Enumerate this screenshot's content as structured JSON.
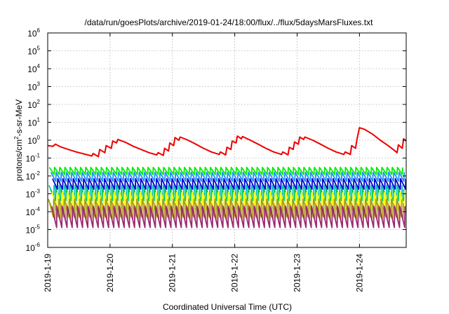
{
  "chart_data": {
    "type": "line",
    "title": "/data/run/goesPlots/archive/2019-01-24/18:00/flux/../flux/5daysMarsFluxes.txt",
    "xlabel": "Coordinated Universal Time (UTC)",
    "ylabel_parts": [
      "protons/cm",
      "2",
      "-s-sr-MeV"
    ],
    "y_scale": "log",
    "ylim": [
      1e-06,
      1000000.0
    ],
    "y_ticks": [
      {
        "base": "10",
        "exp": "-6",
        "value": 1e-06
      },
      {
        "base": "10",
        "exp": "-5",
        "value": 1e-05
      },
      {
        "base": "10",
        "exp": "-4",
        "value": 0.0001
      },
      {
        "base": "10",
        "exp": "-3",
        "value": 0.001
      },
      {
        "base": "10",
        "exp": "-2",
        "value": 0.01
      },
      {
        "base": "10",
        "exp": "-1",
        "value": 0.1
      },
      {
        "base": "10",
        "exp": "0",
        "value": 1
      },
      {
        "base": "10",
        "exp": "1",
        "value": 10
      },
      {
        "base": "10",
        "exp": "2",
        "value": 100
      },
      {
        "base": "10",
        "exp": "3",
        "value": 1000
      },
      {
        "base": "10",
        "exp": "4",
        "value": 10000
      },
      {
        "base": "10",
        "exp": "5",
        "value": 100000
      },
      {
        "base": "10",
        "exp": "6",
        "value": 1000000
      }
    ],
    "x_range": [
      "2019-01-19T00:00",
      "2019-01-24T18:00"
    ],
    "x_ticks": [
      {
        "label": "2019-1-19",
        "date": "2019-01-19T00:00"
      },
      {
        "label": "2019-1-20",
        "date": "2019-01-20T00:00"
      },
      {
        "label": "2019-1-21",
        "date": "2019-01-21T00:00"
      },
      {
        "label": "2019-1-22",
        "date": "2019-01-22T00:00"
      },
      {
        "label": "2019-1-23",
        "date": "2019-01-23T00:00"
      },
      {
        "label": "2019-1-24",
        "date": "2019-01-24T00:00"
      }
    ],
    "grid": true,
    "series": [
      {
        "color": "#ee0000",
        "points": [
          [
            "2019-01-19T00:00",
            0.5
          ],
          [
            "2019-01-19T02:00",
            0.45
          ],
          [
            "2019-01-19T03:00",
            0.6
          ],
          [
            "2019-01-19T05:00",
            0.42
          ],
          [
            "2019-01-19T08:00",
            0.3
          ],
          [
            "2019-01-19T11:00",
            0.22
          ],
          [
            "2019-01-19T14:00",
            0.17
          ],
          [
            "2019-01-19T17:00",
            0.13
          ],
          [
            "2019-01-19T17:30",
            0.18
          ],
          [
            "2019-01-19T19:30",
            0.12
          ],
          [
            "2019-01-19T20:00",
            0.3
          ],
          [
            "2019-01-19T22:00",
            0.2
          ],
          [
            "2019-01-19T22:30",
            0.5
          ],
          [
            "2019-01-20T00:30",
            0.35
          ],
          [
            "2019-01-20T01:00",
            0.9
          ],
          [
            "2019-01-20T02:30",
            0.7
          ],
          [
            "2019-01-20T03:00",
            1.1
          ],
          [
            "2019-01-20T06:00",
            0.75
          ],
          [
            "2019-01-20T09:00",
            0.45
          ],
          [
            "2019-01-20T12:00",
            0.3
          ],
          [
            "2019-01-20T15:00",
            0.2
          ],
          [
            "2019-01-20T18:00",
            0.15
          ],
          [
            "2019-01-20T18:30",
            0.2
          ],
          [
            "2019-01-20T20:30",
            0.14
          ],
          [
            "2019-01-20T21:00",
            0.35
          ],
          [
            "2019-01-20T22:30",
            0.25
          ],
          [
            "2019-01-20T23:00",
            0.7
          ],
          [
            "2019-01-21T00:30",
            0.5
          ],
          [
            "2019-01-21T01:00",
            1.4
          ],
          [
            "2019-01-21T02:30",
            1.0
          ],
          [
            "2019-01-21T03:00",
            1.5
          ],
          [
            "2019-01-21T06:00",
            1.0
          ],
          [
            "2019-01-21T09:00",
            0.6
          ],
          [
            "2019-01-21T12:00",
            0.35
          ],
          [
            "2019-01-21T15:00",
            0.22
          ],
          [
            "2019-01-21T18:00",
            0.16
          ],
          [
            "2019-01-21T18:30",
            0.22
          ],
          [
            "2019-01-21T20:30",
            0.15
          ],
          [
            "2019-01-21T21:00",
            0.4
          ],
          [
            "2019-01-21T22:30",
            0.3
          ],
          [
            "2019-01-21T23:00",
            0.9
          ],
          [
            "2019-01-22T00:30",
            0.7
          ],
          [
            "2019-01-22T01:00",
            1.7
          ],
          [
            "2019-01-22T02:30",
            1.2
          ],
          [
            "2019-01-22T03:00",
            1.6
          ],
          [
            "2019-01-22T06:00",
            1.0
          ],
          [
            "2019-01-22T09:00",
            0.6
          ],
          [
            "2019-01-22T12:00",
            0.35
          ],
          [
            "2019-01-22T15:00",
            0.22
          ],
          [
            "2019-01-22T18:00",
            0.16
          ],
          [
            "2019-01-22T18:30",
            0.22
          ],
          [
            "2019-01-22T20:30",
            0.15
          ],
          [
            "2019-01-22T21:00",
            0.4
          ],
          [
            "2019-01-22T22:30",
            0.3
          ],
          [
            "2019-01-22T23:00",
            0.8
          ],
          [
            "2019-01-23T00:30",
            0.6
          ],
          [
            "2019-01-23T01:00",
            1.5
          ],
          [
            "2019-01-23T02:30",
            1.1
          ],
          [
            "2019-01-23T03:00",
            1.5
          ],
          [
            "2019-01-23T06:00",
            1.0
          ],
          [
            "2019-01-23T09:00",
            0.6
          ],
          [
            "2019-01-23T12:00",
            0.35
          ],
          [
            "2019-01-23T15:00",
            0.22
          ],
          [
            "2019-01-23T18:00",
            0.16
          ],
          [
            "2019-01-23T18:30",
            0.22
          ],
          [
            "2019-01-23T20:30",
            0.16
          ],
          [
            "2019-01-23T21:00",
            0.5
          ],
          [
            "2019-01-23T22:30",
            0.35
          ],
          [
            "2019-01-23T23:00",
            1.0
          ],
          [
            "2019-01-24T00:00",
            5.0
          ],
          [
            "2019-01-24T02:00",
            4.0
          ],
          [
            "2019-01-24T05:00",
            2.2
          ],
          [
            "2019-01-24T08:00",
            1.0
          ],
          [
            "2019-01-24T11:00",
            0.5
          ],
          [
            "2019-01-24T13:00",
            0.3
          ],
          [
            "2019-01-24T14:30",
            0.2
          ],
          [
            "2019-01-24T15:00",
            0.55
          ],
          [
            "2019-01-24T16:30",
            0.35
          ],
          [
            "2019-01-24T17:00",
            1.2
          ],
          [
            "2019-01-24T18:00",
            0.9
          ]
        ]
      },
      {
        "color": "#00ee00",
        "hi": 0.03,
        "lo": 0.012
      },
      {
        "color": "#1e90ff",
        "hi": 0.016,
        "lo": 0.005
      },
      {
        "color": "#0000cd",
        "hi": 0.007,
        "lo": 0.0018
      },
      {
        "color": "#00bfbf",
        "hi": 0.003,
        "lo": 0.0007
      },
      {
        "color": "#00c850",
        "hi": 0.0018,
        "lo": 0.0004
      },
      {
        "color": "#ffff00",
        "hi": 0.0012,
        "lo": 0.00012
      },
      {
        "color": "#a0a000",
        "hi": 0.0005,
        "lo": 5e-05
      },
      {
        "color": "#c0a030",
        "hi": 0.0003,
        "lo": 4e-05
      },
      {
        "color": "#9b2a6f",
        "hi": 0.0002,
        "lo": 1.3e-05
      }
    ]
  }
}
